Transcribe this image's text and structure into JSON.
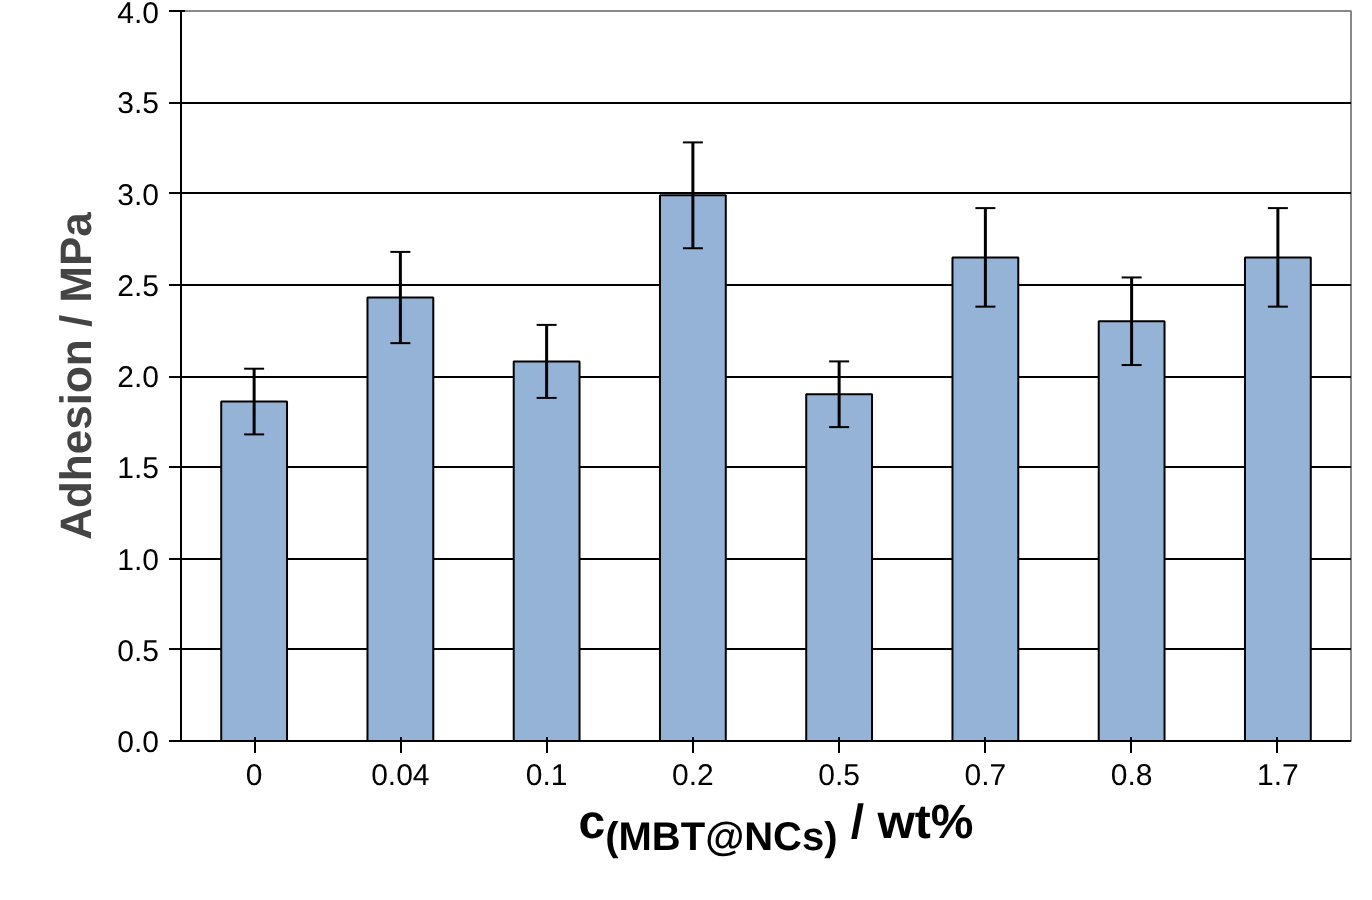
{
  "chart_data": {
    "type": "bar",
    "xlabel": "c$_{(MBT@NCs)}$ / wt%",
    "ylabel": "Adhesion / MPa",
    "categories": [
      "0",
      "0.04",
      "0.1",
      "0.2",
      "0.5",
      "0.7",
      "0.8",
      "1.7"
    ],
    "values": [
      1.86,
      2.43,
      2.08,
      2.99,
      1.9,
      2.65,
      2.3,
      2.65
    ],
    "errors": [
      0.18,
      0.25,
      0.2,
      0.29,
      0.18,
      0.27,
      0.24,
      0.27
    ],
    "color": "#95b3d7",
    "ylim": [
      0,
      4
    ],
    "yticks": [
      {
        "value": 0,
        "label": "0.0"
      },
      {
        "value": 0.5,
        "label": "0.5"
      },
      {
        "value": 1,
        "label": "1.0"
      },
      {
        "value": 1.5,
        "label": "1.5"
      },
      {
        "value": 2,
        "label": "2.0"
      },
      {
        "value": 2.5,
        "label": "2.5"
      },
      {
        "value": 3,
        "label": "3.0"
      },
      {
        "value": 3.5,
        "label": "3.5"
      },
      {
        "value": 4,
        "label": "4.0"
      }
    ],
    "grid": "y"
  }
}
